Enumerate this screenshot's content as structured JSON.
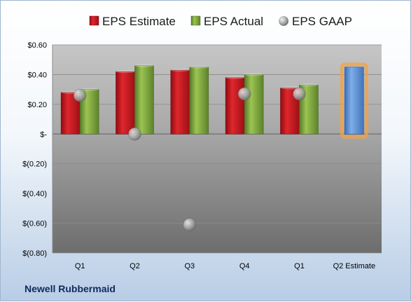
{
  "chart_data": {
    "type": "bar",
    "company": "Newell Rubbermaid",
    "categories": [
      "Q1",
      "Q2",
      "Q3",
      "Q4",
      "Q1",
      "Q2 Estimate"
    ],
    "series": [
      {
        "name": "EPS Estimate",
        "color": "#c8161d",
        "values": [
          0.28,
          0.42,
          0.43,
          0.38,
          0.31,
          null
        ]
      },
      {
        "name": "EPS Actual",
        "color": "#7ea83a",
        "values": [
          0.3,
          0.46,
          0.45,
          0.4,
          0.33,
          null
        ]
      },
      {
        "name": "EPS GAAP",
        "color": "#a0a4a8",
        "marker": "sphere",
        "values": [
          0.26,
          0.0,
          -0.61,
          0.27,
          0.27,
          null
        ]
      }
    ],
    "forecast": {
      "category": "Q2 Estimate",
      "value": 0.45,
      "color": "#5b8fd4",
      "highlight_color": "#f5a142"
    },
    "ylim": [
      -0.8,
      0.6
    ],
    "yticks": [
      0.6,
      0.4,
      0.2,
      0.0,
      -0.2,
      -0.4,
      -0.6,
      -0.8
    ],
    "ytick_labels": [
      "$0.60",
      "$0.40",
      "$0.20",
      "$-",
      "$(0.20)",
      "$(0.40)",
      "$(0.60)",
      "$(0.80)"
    ],
    "grid": true,
    "legend_position": "top"
  }
}
